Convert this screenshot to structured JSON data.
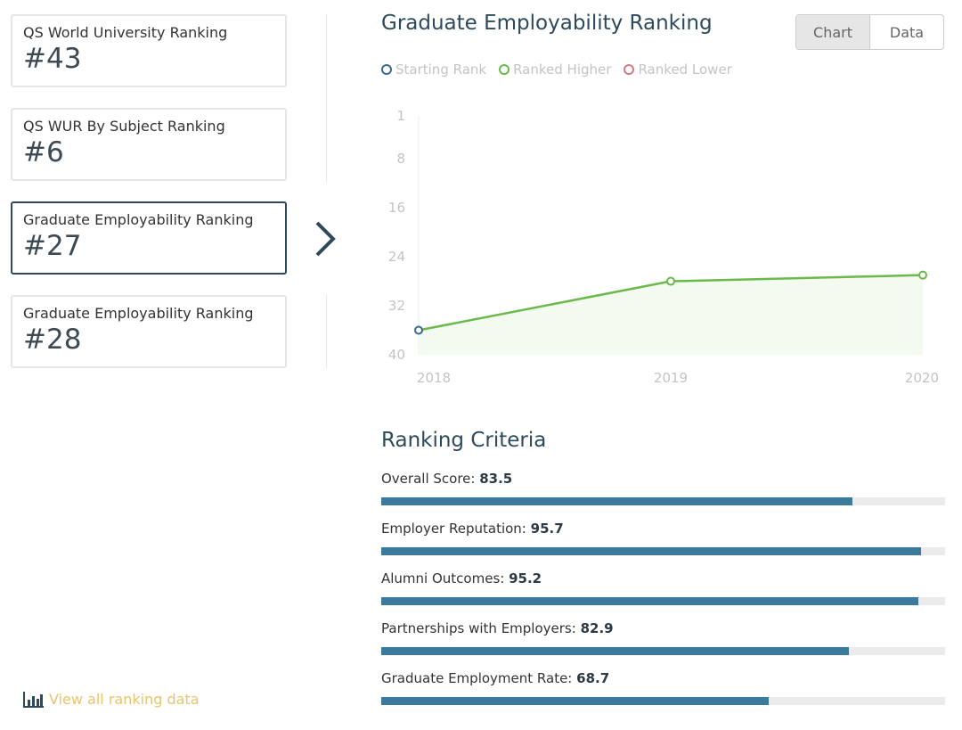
{
  "sidebar": {
    "cards": [
      {
        "title": "QS World University Ranking",
        "rank": "#43"
      },
      {
        "title": "QS WUR By Subject Ranking",
        "rank": "#6"
      },
      {
        "title": "Graduate Employability Ranking",
        "rank": "#27"
      },
      {
        "title": "Graduate Employability Ranking",
        "rank": "#28"
      }
    ],
    "view_all": "View all ranking data"
  },
  "main": {
    "title": "Graduate Employability Ranking",
    "toggle": {
      "chart": "Chart",
      "data": "Data"
    },
    "legend": [
      {
        "label": "Starting Rank",
        "color": "#3b6a8f"
      },
      {
        "label": "Ranked Higher",
        "color": "#6ab94a"
      },
      {
        "label": "Ranked Lower",
        "color": "#d27a82"
      }
    ],
    "criteria_title": "Ranking Criteria",
    "criteria": [
      {
        "label": "Overall Score:",
        "value": "83.5",
        "pct": 83.5
      },
      {
        "label": "Employer Reputation:",
        "value": "95.7",
        "pct": 95.7
      },
      {
        "label": "Alumni Outcomes:",
        "value": "95.2",
        "pct": 95.2
      },
      {
        "label": "Partnerships with Employers:",
        "value": "82.9",
        "pct": 82.9
      },
      {
        "label": "Graduate Employment Rate:",
        "value": "68.7",
        "pct": 68.7
      }
    ]
  },
  "chart_data": {
    "type": "line",
    "x": [
      "2018",
      "2019",
      "2020"
    ],
    "values": [
      36,
      28,
      27
    ],
    "yticks": [
      "1",
      "8",
      "16",
      "24",
      "32",
      "40"
    ],
    "ylim": [
      1,
      40
    ],
    "y_inverted": true,
    "line_color": "#6ab94a",
    "start_color": "#3b6a8f"
  }
}
